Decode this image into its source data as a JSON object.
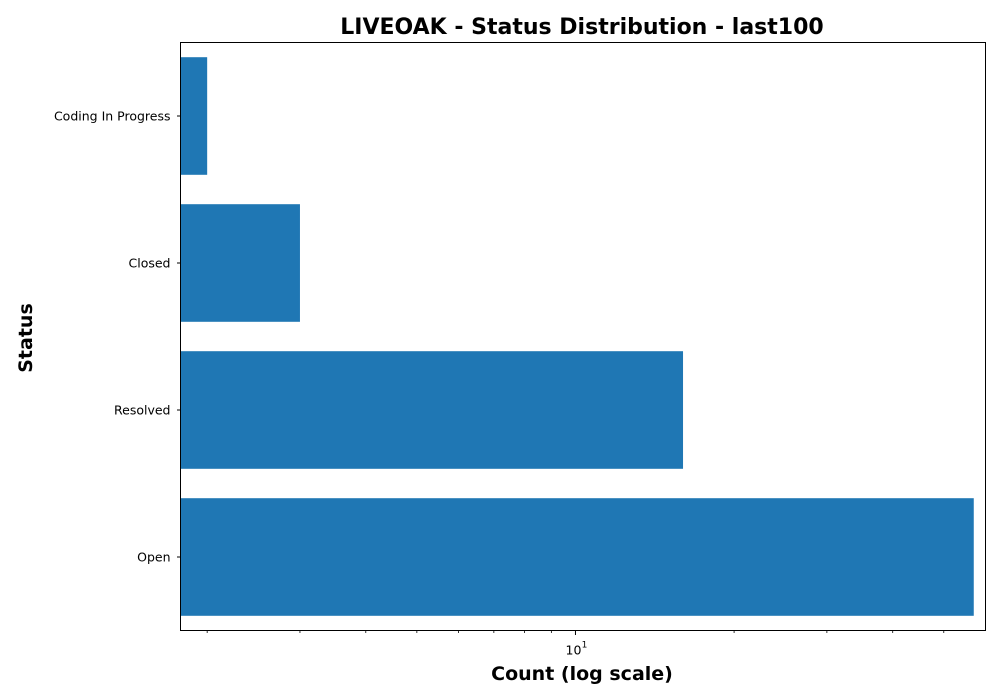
{
  "chart_data": {
    "type": "bar",
    "orientation": "horizontal",
    "title": "LIVEOAK - Status Distribution - last100",
    "xlabel": "Count (log scale)",
    "ylabel": "Status",
    "x_scale": "log",
    "xlim": [
      1.78,
      60
    ],
    "categories": [
      "Open",
      "Resolved",
      "Closed",
      "Coding In Progress"
    ],
    "values": [
      57,
      16,
      3,
      2
    ],
    "x_major_ticks": [
      {
        "value": 10,
        "base": "10",
        "exponent": "1"
      }
    ],
    "x_minor_ticks": [
      2,
      3,
      4,
      5,
      6,
      7,
      8,
      9,
      20,
      30,
      40,
      50
    ],
    "bar_color": "#1f77b4",
    "grid": false,
    "legend": "none"
  }
}
